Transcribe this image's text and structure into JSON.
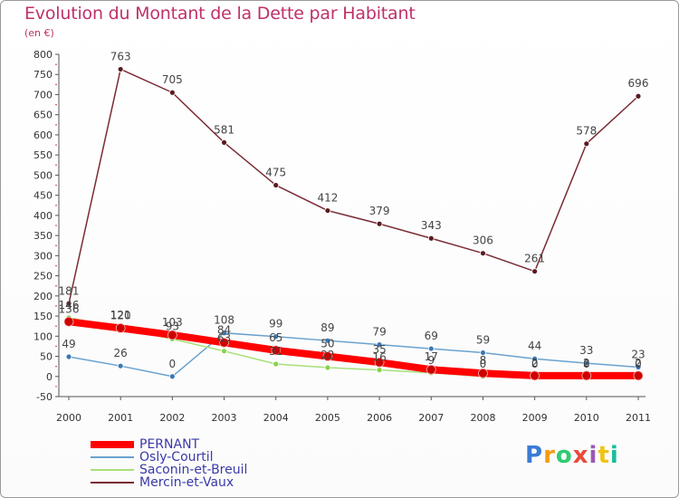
{
  "title": "Evolution du Montant de la Dette par Habitant",
  "subtitle": "(en €)",
  "logo": [
    "P",
    "r",
    "o",
    "x",
    "i",
    "t",
    "i"
  ],
  "logo_colors": [
    "#3a7bd5",
    "#f39c12",
    "#2ecc71",
    "#e74c3c",
    "#9b59b6",
    "#f1c40f",
    "#1abc9c"
  ],
  "chart_data": {
    "type": "line",
    "x": [
      "2000",
      "2001",
      "2002",
      "2003",
      "2004",
      "2005",
      "2006",
      "2007",
      "2008",
      "2009",
      "2010",
      "2011"
    ],
    "ylim": [
      -50,
      800
    ],
    "yticks": [
      -50,
      0,
      50,
      100,
      150,
      200,
      250,
      300,
      350,
      400,
      450,
      500,
      550,
      600,
      650,
      700,
      750,
      800
    ],
    "grid": false,
    "legend_position": "bottom-left",
    "series": [
      {
        "name": "PERNANT",
        "color": "#ff0000",
        "marker": "#cc0000",
        "width": 8,
        "values": [
          136,
          120,
          103,
          84,
          65,
          50,
          35,
          17,
          8,
          2,
          2,
          2
        ],
        "labels": [
          "136",
          "120",
          "103",
          "84",
          "65",
          "50",
          "35",
          "17",
          "8",
          "2",
          "2",
          "2"
        ]
      },
      {
        "name": "Osly-Courtil",
        "color": "#6aa2cf",
        "marker": "#3a78b5",
        "width": 1.5,
        "values": [
          49,
          26,
          0,
          108,
          99,
          89,
          79,
          69,
          59,
          44,
          33,
          23
        ],
        "labels": [
          "49",
          "26",
          "0",
          "108",
          "99",
          "89",
          "79",
          "69",
          "59",
          "44",
          "33",
          "23"
        ]
      },
      {
        "name": "Saconin-et-Breuil",
        "color": "#a6e07a",
        "marker": "#86d34a",
        "width": 1.5,
        "values": [
          146,
          121,
          93,
          63,
          31,
          22,
          16,
          9,
          0,
          0,
          0,
          0
        ],
        "labels": [
          "146",
          "121",
          "93",
          "63",
          "31",
          "22",
          "16",
          "9",
          "0",
          "0",
          "0",
          "0"
        ]
      },
      {
        "name": "Mercin-et-Vaux",
        "color": "#7a2b34",
        "marker": "#5a1a20",
        "width": 1.5,
        "values": [
          181,
          763,
          705,
          581,
          475,
          412,
          379,
          343,
          306,
          261,
          578,
          696
        ],
        "labels": [
          "181",
          "763",
          "705",
          "581",
          "475",
          "412",
          "379",
          "343",
          "306",
          "261",
          "578",
          "696"
        ]
      }
    ]
  }
}
